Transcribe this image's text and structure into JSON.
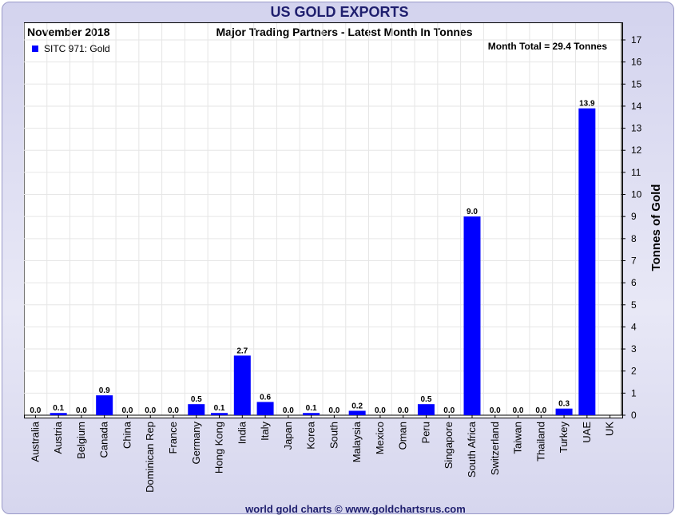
{
  "header": {
    "title": "US GOLD EXPORTS",
    "date": "November 2018",
    "subtitle": "Major Trading Partners - Latest Month In Tonnes",
    "month_total": "Month Total = 29.4 Tonnes"
  },
  "footer": {
    "credit": "world gold charts © www.goldchartsrus.com"
  },
  "colors": {
    "bar": "#0000ff",
    "title": "#1f1f6e",
    "grid": "#e6e6e6"
  },
  "chart_data": {
    "type": "bar",
    "title": "US GOLD EXPORTS",
    "subtitle": "Major Trading Partners - Latest Month In Tonnes",
    "ylabel": "Tonnes of Gold",
    "xlabel": "",
    "ylim": [
      0,
      17
    ],
    "yticks": [
      0,
      1,
      2,
      3,
      4,
      5,
      6,
      7,
      8,
      9,
      10,
      11,
      12,
      13,
      14,
      15,
      16,
      17
    ],
    "legend": {
      "label": "SITC 971: Gold",
      "position": "top-left"
    },
    "series": [
      {
        "name": "SITC 971: Gold",
        "values": [
          0.0,
          0.1,
          0.0,
          0.9,
          0.0,
          0.0,
          0.0,
          0.5,
          0.1,
          2.7,
          0.6,
          0.0,
          0.1,
          0.0,
          0.2,
          0.0,
          0.0,
          0.5,
          0.0,
          9.0,
          0.0,
          0.0,
          0.0,
          0.3,
          13.9,
          null
        ],
        "labels": [
          "0.0",
          "0.1",
          "0.0",
          "0.9",
          "0.0",
          "0.0",
          "0.0",
          "0.5",
          "0.1",
          "2.7",
          "0.6",
          "0.0",
          "0.1",
          "0.0",
          "0.2",
          "0.0",
          "0.0",
          "0.5",
          "0.0",
          "9.0",
          "0.0",
          "0.0",
          "0.0",
          "0.3",
          "13.9",
          ""
        ]
      }
    ],
    "categories": [
      "Australia",
      "Austria",
      "Belgium",
      "Canada",
      "China",
      "Dominican Rep",
      "France",
      "Germany",
      "Hong Kong",
      "India",
      "Italy",
      "Japan",
      "Korea",
      "South",
      "Malaysia",
      "Mexico",
      "Oman",
      "Peru",
      "Singapore",
      "South Africa",
      "Switzerland",
      "Taiwan",
      "Thailand",
      "Turkey",
      "UAE",
      "UK"
    ]
  }
}
